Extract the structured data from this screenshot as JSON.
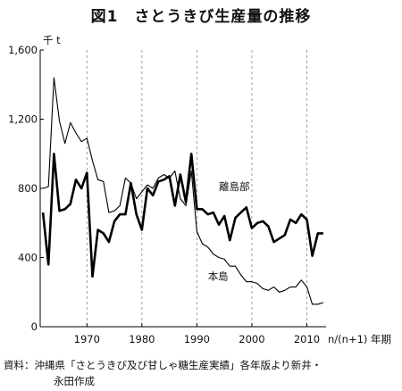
{
  "figure": {
    "title": "図1　さとうきび生産量の推移",
    "source_line1": "資料：沖縄県「さとうきび及び甘しゃ糖生産実績」各年版より新井・",
    "source_line2": "永田作成"
  },
  "chart_data": {
    "type": "line",
    "title": "図1　さとうきび生産量の推移",
    "ylabel": "千 t",
    "xlabel": "n/(n+1) 年期",
    "ylim": [
      0,
      1600
    ],
    "xlim": [
      1961.5,
      2013.5
    ],
    "yticks": [
      0,
      400,
      800,
      1200,
      1600
    ],
    "ytick_labels": [
      "0",
      "400",
      "800",
      "1,200",
      "1,600"
    ],
    "xticks": [
      1970,
      1980,
      1990,
      2000,
      2010
    ],
    "xtick_labels": [
      "1970",
      "1980",
      "1990",
      "2000",
      "2010"
    ],
    "grid": "vertical dashed at x ticks",
    "series": [
      {
        "name": "離島部",
        "style": "thick",
        "color": "#000000",
        "x": [
          1962,
          1963,
          1964,
          1965,
          1966,
          1967,
          1968,
          1969,
          1970,
          1971,
          1972,
          1973,
          1974,
          1975,
          1976,
          1977,
          1978,
          1979,
          1980,
          1981,
          1982,
          1983,
          1984,
          1985,
          1986,
          1987,
          1988,
          1989,
          1990,
          1991,
          1992,
          1993,
          1994,
          1995,
          1996,
          1997,
          1998,
          1999,
          2000,
          2001,
          2002,
          2003,
          2004,
          2005,
          2006,
          2007,
          2008,
          2009,
          2010,
          2011,
          2012,
          2013
        ],
        "values": [
          660,
          360,
          1000,
          670,
          680,
          710,
          850,
          800,
          890,
          290,
          560,
          540,
          490,
          610,
          650,
          650,
          830,
          650,
          560,
          800,
          760,
          840,
          850,
          870,
          700,
          880,
          720,
          1000,
          680,
          680,
          650,
          660,
          590,
          640,
          500,
          630,
          660,
          690,
          570,
          600,
          610,
          580,
          490,
          510,
          530,
          620,
          600,
          650,
          620,
          410,
          540,
          540
        ]
      },
      {
        "name": "本島",
        "style": "thin",
        "color": "#000000",
        "x": [
          1962,
          1963,
          1964,
          1965,
          1966,
          1967,
          1968,
          1969,
          1970,
          1971,
          1972,
          1973,
          1974,
          1975,
          1976,
          1977,
          1978,
          1979,
          1980,
          1981,
          1982,
          1983,
          1984,
          1985,
          1986,
          1987,
          1988,
          1989,
          1990,
          1991,
          1992,
          1993,
          1994,
          1995,
          1996,
          1997,
          1998,
          1999,
          2000,
          2001,
          2002,
          2003,
          2004,
          2005,
          2006,
          2007,
          2008,
          2009,
          2010,
          2011,
          2012,
          2013
        ],
        "values": [
          800,
          810,
          1440,
          1190,
          1060,
          1180,
          1120,
          1070,
          1090,
          960,
          850,
          840,
          660,
          670,
          700,
          860,
          830,
          740,
          780,
          820,
          800,
          860,
          880,
          860,
          900,
          740,
          700,
          900,
          550,
          480,
          460,
          420,
          400,
          390,
          350,
          350,
          300,
          260,
          260,
          250,
          220,
          210,
          230,
          200,
          210,
          230,
          230,
          270,
          230,
          130,
          130,
          140
        ]
      }
    ],
    "annotations": [
      {
        "text": "離島部",
        "x": 1994,
        "y": 790
      },
      {
        "text": "本島",
        "x": 1992,
        "y": 270
      }
    ]
  }
}
